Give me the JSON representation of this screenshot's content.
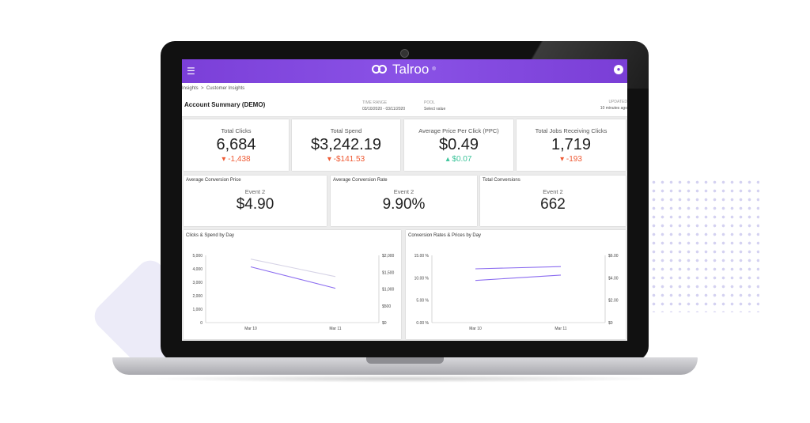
{
  "header": {
    "brand": "Talroo",
    "menu_icon": "hamburger-icon",
    "user_icon": "account-icon"
  },
  "breadcrumb": {
    "items": [
      "Insights",
      "Customer Insights"
    ],
    "separator": ">"
  },
  "page": {
    "title": "Account Summary (DEMO)"
  },
  "filters": [
    {
      "label": "TIME RANGE",
      "value": "03/10/2020 - 03/11/2020"
    },
    {
      "label": "POOL",
      "value": "Select value"
    }
  ],
  "updated": {
    "label": "UPDATED",
    "value": "10 minutes ago"
  },
  "kpis": [
    {
      "label": "Total Clicks",
      "value": "6,684",
      "delta": "-1,438",
      "direction": "down"
    },
    {
      "label": "Total Spend",
      "value": "$3,242.19",
      "delta": "-$141.53",
      "direction": "down"
    },
    {
      "label": "Average Price Per Click (PPC)",
      "value": "$0.49",
      "delta": "$0.07",
      "direction": "up"
    },
    {
      "label": "Total Jobs Receiving Clicks",
      "value": "1,719",
      "delta": "-193",
      "direction": "down"
    }
  ],
  "conversions": [
    {
      "label": "Average Conversion Price",
      "event": "Event 2",
      "value": "$4.90"
    },
    {
      "label": "Average Conversion Rate",
      "event": "Event 2",
      "value": "9.90%"
    },
    {
      "label": "Total Conversions",
      "event": "Event 2",
      "value": "662"
    }
  ],
  "colors": {
    "accent": "#7b3fd8",
    "negative": "#ef5a34",
    "positive": "#3cc49a"
  },
  "chart_data": [
    {
      "type": "line",
      "title": "Clicks & Spend by Day",
      "categories": [
        "Mar 10",
        "Mar 11"
      ],
      "y_left": {
        "ticks": [
          "5,000",
          "4,000",
          "3,000",
          "2,000",
          "1,000",
          "0"
        ],
        "range": [
          0,
          5000
        ]
      },
      "y_right": {
        "ticks": [
          "$2,000",
          "$1,500",
          "$1,000",
          "$500",
          "$0"
        ],
        "range": [
          0,
          2000
        ]
      },
      "series": [
        {
          "axis": "left",
          "color": "#8b6cf0",
          "values": [
            4150,
            2550
          ]
        },
        {
          "axis": "right",
          "color": "#d6d3e6",
          "values": [
            1890,
            1370
          ]
        }
      ]
    },
    {
      "type": "line",
      "title": "Conversion Rates & Prices by Day",
      "categories": [
        "Mar 10",
        "Mar 11"
      ],
      "y_left": {
        "ticks": [
          "15.00 %",
          "10.00 %",
          "5.00 %",
          "0.00 %"
        ],
        "range": [
          0,
          15
        ]
      },
      "y_right": {
        "ticks": [
          "$6.00",
          "$4.00",
          "$2.00",
          "$0"
        ],
        "range": [
          0,
          6
        ]
      },
      "series": [
        {
          "axis": "left",
          "color": "#8b6cf0",
          "values": [
            9.4,
            10.6
          ]
        },
        {
          "axis": "right",
          "color": "#8b6cf0",
          "values": [
            4.8,
            5.0
          ]
        }
      ]
    }
  ]
}
